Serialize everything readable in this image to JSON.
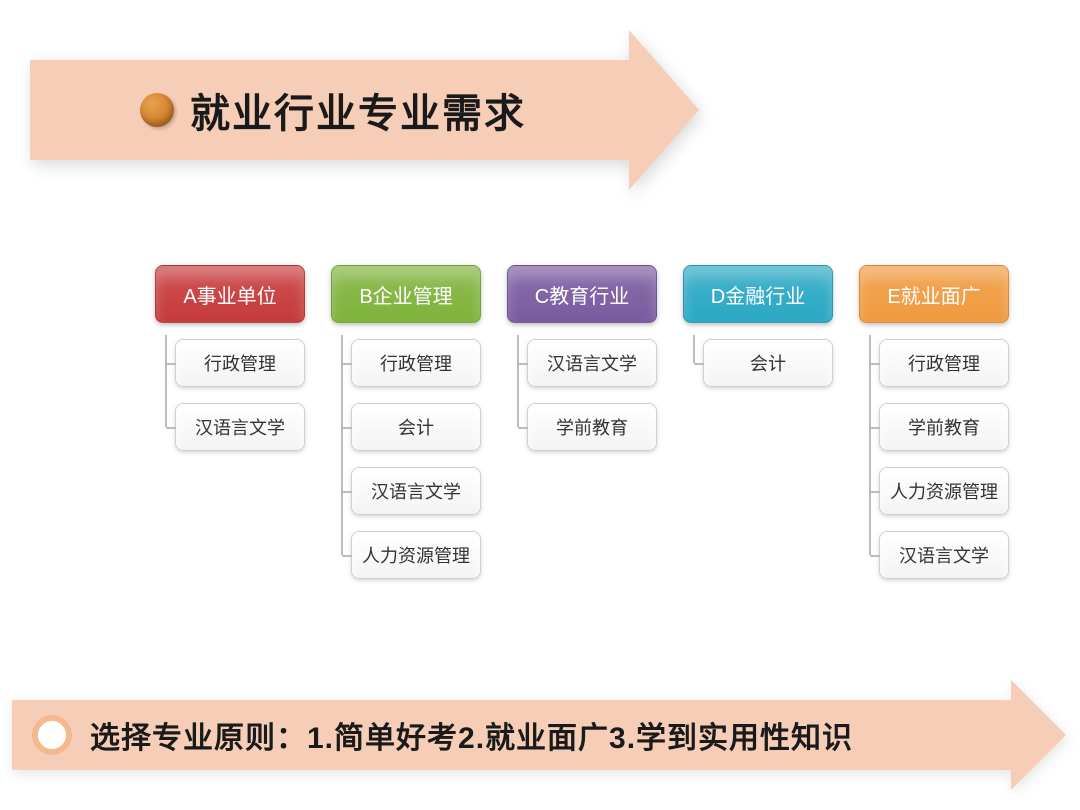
{
  "banner_color": "#f6cdb6",
  "arrow_border_color": "#f6cdb6",
  "bullet_gradient_a": "#e8a24d",
  "bullet_gradient_b": "#c46a1a",
  "title_color": "#1a1a1a",
  "title_text": "就业行业专业需求",
  "bottom_bullet_border": "#f4b98f",
  "bottom_text_color": "#1a1a1a",
  "bottom_text": "选择专业原则：1.简单好考2.就业面广3.学到实用性知识",
  "child_text_color": "#333333",
  "columns": [
    {
      "header": "A事业单位",
      "color": "#c63a3a",
      "children": [
        "行政管理",
        "汉语言文学"
      ]
    },
    {
      "header": "B企业管理",
      "color": "#7fb33b",
      "children": [
        "行政管理",
        "会计",
        "汉语言文学",
        "人力资源管理"
      ]
    },
    {
      "header": "C教育行业",
      "color": "#7a5aa0",
      "children": [
        "汉语言文学",
        "学前教育"
      ]
    },
    {
      "header": "D金融行业",
      "color": "#2aa8c4",
      "children": [
        "会计"
      ]
    },
    {
      "header": "E就业面广",
      "color": "#f09a3e",
      "children": [
        "行政管理",
        "学前教育",
        "人力资源管理",
        "汉语言文学"
      ]
    }
  ]
}
